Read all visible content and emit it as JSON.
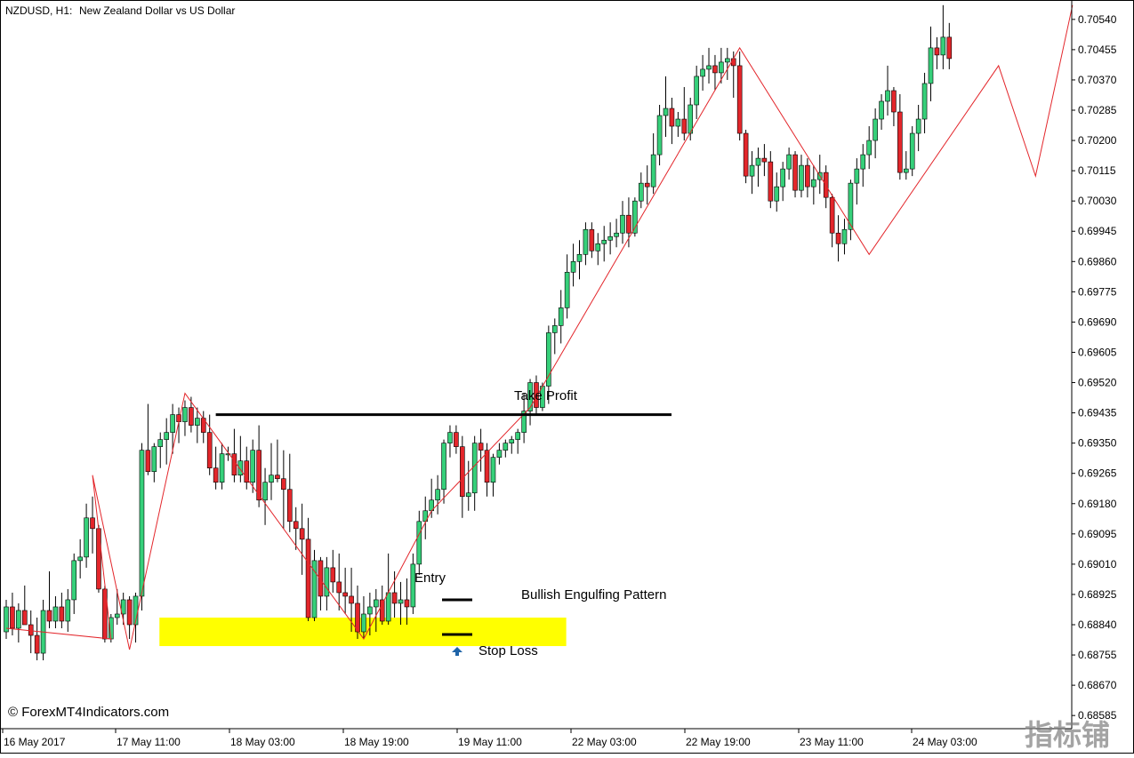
{
  "header": {
    "symbol": "NZDUSD, H1:",
    "description": "New Zealand Dollar vs US Dollar"
  },
  "watermark": "© ForexMT4Indicators.com",
  "corner_logo": "指标铺",
  "colors": {
    "bull_body": "#36d07a",
    "bear_body": "#e3262b",
    "wick": "#000000",
    "zigzag": "#e3262b",
    "zone": "#ffff00",
    "level_line": "#000000",
    "arrow": "#1f64a8"
  },
  "icons": {
    "signal_arrow": "up-arrow-icon"
  },
  "chart_data": {
    "type": "candlestick",
    "symbol": "NZDUSD",
    "timeframe": "H1",
    "ylim": [
      0.6855,
      0.7058
    ],
    "y_ticks": [
      "0.70540",
      "0.70455",
      "0.70370",
      "0.70285",
      "0.70200",
      "0.70115",
      "0.70030",
      "0.69945",
      "0.69860",
      "0.69775",
      "0.69690",
      "0.69605",
      "0.69520",
      "0.69435",
      "0.69350",
      "0.69265",
      "0.69180",
      "0.69095",
      "0.69010",
      "0.68925",
      "0.68840",
      "0.68755",
      "0.68670",
      "0.68585"
    ],
    "x_ticks": [
      "16 May 2017",
      "17 May 11:00",
      "18 May 03:00",
      "18 May 19:00",
      "19 May 11:00",
      "22 May 03:00",
      "22 May 19:00",
      "23 May 11:00",
      "24 May 03:00"
    ],
    "candles": [
      [
        0.6882,
        0.6891,
        0.688,
        0.6889
      ],
      [
        0.6889,
        0.6893,
        0.6881,
        0.6883
      ],
      [
        0.6883,
        0.689,
        0.6879,
        0.6888
      ],
      [
        0.6888,
        0.6895,
        0.6884,
        0.6884
      ],
      [
        0.6884,
        0.6888,
        0.6876,
        0.6881
      ],
      [
        0.6881,
        0.6886,
        0.6874,
        0.6876
      ],
      [
        0.6876,
        0.6891,
        0.6874,
        0.6888
      ],
      [
        0.6888,
        0.6899,
        0.6883,
        0.6885
      ],
      [
        0.6885,
        0.6892,
        0.6883,
        0.6889
      ],
      [
        0.6889,
        0.6893,
        0.6883,
        0.6885
      ],
      [
        0.6885,
        0.6894,
        0.6882,
        0.6891
      ],
      [
        0.6891,
        0.6904,
        0.6887,
        0.6902
      ],
      [
        0.6902,
        0.6908,
        0.6897,
        0.6903
      ],
      [
        0.6903,
        0.6918,
        0.69,
        0.6914
      ],
      [
        0.6914,
        0.692,
        0.6904,
        0.6911
      ],
      [
        0.6911,
        0.6912,
        0.6893,
        0.6894
      ],
      [
        0.6894,
        0.6895,
        0.6879,
        0.688
      ],
      [
        0.688,
        0.6887,
        0.6879,
        0.6886
      ],
      [
        0.6886,
        0.6894,
        0.6884,
        0.6887
      ],
      [
        0.6887,
        0.6893,
        0.6884,
        0.6891
      ],
      [
        0.6891,
        0.6892,
        0.688,
        0.6884
      ],
      [
        0.6884,
        0.6893,
        0.6879,
        0.6892
      ],
      [
        0.6892,
        0.6935,
        0.6888,
        0.6933
      ],
      [
        0.6933,
        0.6946,
        0.6926,
        0.6927
      ],
      [
        0.6927,
        0.6935,
        0.6924,
        0.6934
      ],
      [
        0.6934,
        0.6938,
        0.6928,
        0.6936
      ],
      [
        0.6936,
        0.6942,
        0.6929,
        0.6938
      ],
      [
        0.6938,
        0.6946,
        0.6932,
        0.6943
      ],
      [
        0.6943,
        0.6945,
        0.6935,
        0.6941
      ],
      [
        0.6941,
        0.6947,
        0.6937,
        0.6945
      ],
      [
        0.6945,
        0.6948,
        0.6938,
        0.694
      ],
      [
        0.694,
        0.6945,
        0.6935,
        0.6942
      ],
      [
        0.6942,
        0.6944,
        0.6935,
        0.6938
      ],
      [
        0.6938,
        0.6943,
        0.6926,
        0.6928
      ],
      [
        0.6928,
        0.6934,
        0.6922,
        0.6924
      ],
      [
        0.6924,
        0.6935,
        0.6922,
        0.6932
      ],
      [
        0.6932,
        0.6934,
        0.693,
        0.6932
      ],
      [
        0.6932,
        0.6939,
        0.6924,
        0.6926
      ],
      [
        0.6926,
        0.6937,
        0.6924,
        0.693
      ],
      [
        0.693,
        0.6934,
        0.6922,
        0.6924
      ],
      [
        0.6924,
        0.6936,
        0.6921,
        0.6933
      ],
      [
        0.6933,
        0.694,
        0.6917,
        0.6919
      ],
      [
        0.6919,
        0.6928,
        0.6912,
        0.6924
      ],
      [
        0.6924,
        0.6935,
        0.6919,
        0.6926
      ],
      [
        0.6926,
        0.6936,
        0.6924,
        0.6925
      ],
      [
        0.6925,
        0.6933,
        0.6911,
        0.6922
      ],
      [
        0.6922,
        0.6932,
        0.691,
        0.6913
      ],
      [
        0.6913,
        0.6917,
        0.6905,
        0.6911
      ],
      [
        0.6911,
        0.6918,
        0.6898,
        0.6908
      ],
      [
        0.6908,
        0.6914,
        0.6885,
        0.6886
      ],
      [
        0.6886,
        0.6905,
        0.6885,
        0.6902
      ],
      [
        0.6902,
        0.6903,
        0.6888,
        0.6892
      ],
      [
        0.6892,
        0.6903,
        0.6888,
        0.69
      ],
      [
        0.69,
        0.6905,
        0.6893,
        0.6896
      ],
      [
        0.6896,
        0.6904,
        0.6888,
        0.6893
      ],
      [
        0.6893,
        0.69,
        0.6887,
        0.6892
      ],
      [
        0.6892,
        0.69,
        0.6882,
        0.689
      ],
      [
        0.689,
        0.6895,
        0.688,
        0.6882
      ],
      [
        0.6882,
        0.6892,
        0.688,
        0.6887
      ],
      [
        0.6887,
        0.6893,
        0.6881,
        0.6889
      ],
      [
        0.6889,
        0.6894,
        0.6882,
        0.6891
      ],
      [
        0.6891,
        0.6895,
        0.6884,
        0.6885
      ],
      [
        0.6885,
        0.6904,
        0.6884,
        0.6893
      ],
      [
        0.6893,
        0.6899,
        0.6886,
        0.689
      ],
      [
        0.689,
        0.6896,
        0.6884,
        0.6891
      ],
      [
        0.6891,
        0.6897,
        0.6884,
        0.6889
      ],
      [
        0.6889,
        0.6904,
        0.6887,
        0.6901
      ],
      [
        0.6901,
        0.6916,
        0.6898,
        0.6913
      ],
      [
        0.6913,
        0.692,
        0.6908,
        0.6916
      ],
      [
        0.6916,
        0.6925,
        0.6914,
        0.6919
      ],
      [
        0.6919,
        0.6926,
        0.6915,
        0.6922
      ],
      [
        0.6922,
        0.6936,
        0.6918,
        0.6935
      ],
      [
        0.6935,
        0.694,
        0.6931,
        0.6938
      ],
      [
        0.6938,
        0.694,
        0.6932,
        0.6934
      ],
      [
        0.6934,
        0.6937,
        0.6914,
        0.692
      ],
      [
        0.692,
        0.693,
        0.6916,
        0.6921
      ],
      [
        0.6921,
        0.6937,
        0.6916,
        0.6935
      ],
      [
        0.6935,
        0.6939,
        0.6927,
        0.6933
      ],
      [
        0.6933,
        0.6935,
        0.692,
        0.6924
      ],
      [
        0.6924,
        0.6932,
        0.692,
        0.6931
      ],
      [
        0.6931,
        0.6935,
        0.6929,
        0.6933
      ],
      [
        0.6933,
        0.6936,
        0.6931,
        0.6935
      ],
      [
        0.6935,
        0.6937,
        0.6932,
        0.6936
      ],
      [
        0.6936,
        0.6939,
        0.6932,
        0.6938
      ],
      [
        0.6938,
        0.6949,
        0.6935,
        0.6944
      ],
      [
        0.6944,
        0.6953,
        0.694,
        0.6952
      ],
      [
        0.6952,
        0.6954,
        0.6943,
        0.6945
      ],
      [
        0.6945,
        0.6952,
        0.6944,
        0.6951
      ],
      [
        0.6951,
        0.6968,
        0.6946,
        0.6966
      ],
      [
        0.6966,
        0.697,
        0.696,
        0.6968
      ],
      [
        0.6968,
        0.6978,
        0.6963,
        0.6973
      ],
      [
        0.6973,
        0.6988,
        0.697,
        0.6983
      ],
      [
        0.6983,
        0.6991,
        0.6979,
        0.6986
      ],
      [
        0.6986,
        0.6992,
        0.6981,
        0.6988
      ],
      [
        0.6988,
        0.6997,
        0.6985,
        0.6995
      ],
      [
        0.6995,
        0.6997,
        0.6987,
        0.6989
      ],
      [
        0.6989,
        0.6994,
        0.6985,
        0.6991
      ],
      [
        0.6991,
        0.6996,
        0.6986,
        0.6992
      ],
      [
        0.6992,
        0.6997,
        0.6988,
        0.6993
      ],
      [
        0.6993,
        0.6998,
        0.699,
        0.6994
      ],
      [
        0.6994,
        0.7003,
        0.6991,
        0.6999
      ],
      [
        0.6999,
        0.7004,
        0.699,
        0.6994
      ],
      [
        0.6994,
        0.7004,
        0.6993,
        0.7003
      ],
      [
        0.7003,
        0.7011,
        0.7001,
        0.7008
      ],
      [
        0.7008,
        0.7013,
        0.7002,
        0.7007
      ],
      [
        0.7007,
        0.7022,
        0.7005,
        0.7016
      ],
      [
        0.7016,
        0.703,
        0.7013,
        0.7027
      ],
      [
        0.7027,
        0.7038,
        0.7021,
        0.7029
      ],
      [
        0.7029,
        0.7032,
        0.7019,
        0.7024
      ],
      [
        0.7024,
        0.7028,
        0.7021,
        0.7026
      ],
      [
        0.7026,
        0.7035,
        0.702,
        0.7022
      ],
      [
        0.7022,
        0.7032,
        0.702,
        0.703
      ],
      [
        0.703,
        0.7041,
        0.7026,
        0.7038
      ],
      [
        0.7038,
        0.7044,
        0.7034,
        0.704
      ],
      [
        0.704,
        0.7046,
        0.7036,
        0.7041
      ],
      [
        0.7041,
        0.7044,
        0.7034,
        0.7039
      ],
      [
        0.7039,
        0.7046,
        0.7036,
        0.7042
      ],
      [
        0.7042,
        0.7046,
        0.7037,
        0.7043
      ],
      [
        0.7043,
        0.7045,
        0.7032,
        0.7041
      ],
      [
        0.7041,
        0.7045,
        0.702,
        0.7022
      ],
      [
        0.7022,
        0.7023,
        0.7008,
        0.701
      ],
      [
        0.701,
        0.7017,
        0.7005,
        0.7013
      ],
      [
        0.7013,
        0.7018,
        0.7007,
        0.7015
      ],
      [
        0.7015,
        0.7019,
        0.701,
        0.7014
      ],
      [
        0.7014,
        0.7017,
        0.7001,
        0.7003
      ],
      [
        0.7003,
        0.7011,
        0.7,
        0.7007
      ],
      [
        0.7007,
        0.7014,
        0.7003,
        0.7012
      ],
      [
        0.7012,
        0.7018,
        0.7009,
        0.7016
      ],
      [
        0.7016,
        0.7017,
        0.7004,
        0.7006
      ],
      [
        0.7006,
        0.7016,
        0.7004,
        0.7013
      ],
      [
        0.7013,
        0.7015,
        0.7004,
        0.7007
      ],
      [
        0.7007,
        0.7013,
        0.7002,
        0.7009
      ],
      [
        0.7009,
        0.7016,
        0.7005,
        0.7011
      ],
      [
        0.7011,
        0.7013,
        0.7001,
        0.7004
      ],
      [
        0.7004,
        0.7005,
        0.699,
        0.6994
      ],
      [
        0.6994,
        0.6999,
        0.6986,
        0.6991
      ],
      [
        0.6991,
        0.6998,
        0.6988,
        0.6995
      ],
      [
        0.6995,
        0.7009,
        0.6992,
        0.7008
      ],
      [
        0.7008,
        0.7015,
        0.7002,
        0.7012
      ],
      [
        0.7012,
        0.7019,
        0.7007,
        0.7016
      ],
      [
        0.7016,
        0.7024,
        0.7012,
        0.702
      ],
      [
        0.702,
        0.7029,
        0.7015,
        0.7026
      ],
      [
        0.7026,
        0.7033,
        0.7023,
        0.7031
      ],
      [
        0.7031,
        0.7041,
        0.7027,
        0.7034
      ],
      [
        0.7034,
        0.7035,
        0.7024,
        0.7028
      ],
      [
        0.7028,
        0.7033,
        0.7009,
        0.7011
      ],
      [
        0.7011,
        0.7017,
        0.7009,
        0.7012
      ],
      [
        0.7012,
        0.7024,
        0.701,
        0.7022
      ],
      [
        0.7022,
        0.703,
        0.7017,
        0.7026
      ],
      [
        0.7026,
        0.7039,
        0.7022,
        0.7036
      ],
      [
        0.7036,
        0.7052,
        0.7031,
        0.7046
      ],
      [
        0.7046,
        0.7049,
        0.704,
        0.7044
      ],
      [
        0.7044,
        0.7058,
        0.704,
        0.7049
      ],
      [
        0.7049,
        0.7053,
        0.704,
        0.7043
      ]
    ],
    "zigzag": [
      [
        0,
        0.6883
      ],
      [
        17,
        0.688
      ],
      [
        14,
        0.6926
      ],
      [
        20,
        0.6877
      ],
      [
        29,
        0.6949
      ],
      [
        58,
        0.688
      ],
      [
        69,
        0.6916
      ],
      [
        85,
        0.6945
      ],
      [
        119,
        0.7046
      ],
      [
        140,
        0.6988
      ],
      [
        161,
        0.7041
      ],
      [
        167,
        0.701
      ],
      [
        173,
        0.7058
      ]
    ],
    "annotations": {
      "take_profit_label": "Take Profit",
      "entry_label": "Entry",
      "pattern_label": "Bullish Engulfing Pattern",
      "stop_loss_label": "Stop Loss",
      "take_profit_price": 0.6943,
      "entry_price": 0.6891,
      "stop_loss_price": 0.6879,
      "zone_low": 0.6878,
      "zone_high": 0.6886
    }
  }
}
